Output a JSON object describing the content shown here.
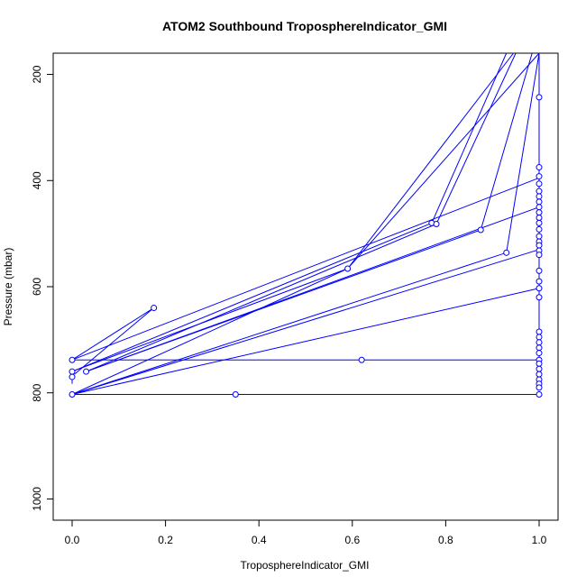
{
  "chart_data": {
    "type": "line",
    "title": "ATOM2 Southbound TroposphereIndicator_GMI",
    "xlabel": "TroposphereIndicator_GMI",
    "ylabel": "Pressure (mbar)",
    "xlim": [
      0,
      1
    ],
    "ylim": [
      1040,
      160
    ],
    "y_reversed": true,
    "xticks": [
      0.0,
      0.2,
      0.4,
      0.6,
      0.8,
      1.0
    ],
    "xtick_labels": [
      "0.0",
      "0.2",
      "0.4",
      "0.6",
      "0.8",
      "1.0"
    ],
    "yticks": [
      200,
      400,
      600,
      800,
      1000
    ],
    "ytick_labels": [
      "200",
      "400",
      "600",
      "800",
      "1000"
    ],
    "grid": false,
    "series_color": "#0000ff",
    "series": [
      {
        "x": [
          0.005,
          0.175,
          0.0
        ],
        "y": [
          765,
          640,
          738
        ]
      },
      {
        "x": [
          0.0,
          1.0
        ],
        "y": [
          738,
          395
        ]
      },
      {
        "x": [
          0.0,
          0.62,
          1.0
        ],
        "y": [
          738,
          738,
          738
        ]
      },
      {
        "x": [
          0.0,
          0.0
        ],
        "y": [
          760,
          783
        ]
      },
      {
        "x": [
          0.0,
          0.77,
          0.93
        ],
        "y": [
          760,
          480,
          155
        ]
      },
      {
        "x": [
          0.03,
          0.78,
          0.95
        ],
        "y": [
          760,
          482,
          155
        ]
      },
      {
        "x": [
          0.03,
          1.0
        ],
        "y": [
          760,
          450
        ]
      },
      {
        "x": [
          0.03,
          0.875,
          0.985
        ],
        "y": [
          760,
          493,
          155
        ]
      },
      {
        "x": [
          0.005,
          0.59,
          0.945
        ],
        "y": [
          758,
          566,
          155
        ]
      },
      {
        "x": [
          0.0,
          0.59,
          1.0
        ],
        "y": [
          803,
          566,
          155
        ]
      },
      {
        "x": [
          0.0,
          0.93,
          1.0
        ],
        "y": [
          803,
          536,
          155
        ]
      },
      {
        "x": [
          0.0,
          1.0
        ],
        "y": [
          803,
          530
        ]
      },
      {
        "x": [
          0.0,
          1.0
        ],
        "y": [
          803,
          603
        ]
      },
      {
        "x": [
          0.0,
          0.35,
          1.0
        ],
        "y": [
          803,
          803,
          803
        ]
      },
      {
        "x": [
          1.0,
          1.0
        ],
        "y": [
          155,
          790
        ]
      }
    ],
    "points": [
      {
        "x": 0.175,
        "y": 640
      },
      {
        "x": 0.03,
        "y": 760
      },
      {
        "x": 0.0,
        "y": 738
      },
      {
        "x": 0.0,
        "y": 760
      },
      {
        "x": 0.0,
        "y": 770
      },
      {
        "x": 0.0,
        "y": 803
      },
      {
        "x": 0.35,
        "y": 803
      },
      {
        "x": 0.62,
        "y": 738
      },
      {
        "x": 0.59,
        "y": 566
      },
      {
        "x": 0.77,
        "y": 480
      },
      {
        "x": 0.78,
        "y": 482
      },
      {
        "x": 0.875,
        "y": 493
      },
      {
        "x": 0.93,
        "y": 536
      },
      {
        "x": 1.0,
        "y": 243
      },
      {
        "x": 1.0,
        "y": 375
      },
      {
        "x": 1.0,
        "y": 392
      },
      {
        "x": 1.0,
        "y": 406
      },
      {
        "x": 1.0,
        "y": 420
      },
      {
        "x": 1.0,
        "y": 430
      },
      {
        "x": 1.0,
        "y": 440
      },
      {
        "x": 1.0,
        "y": 450
      },
      {
        "x": 1.0,
        "y": 460
      },
      {
        "x": 1.0,
        "y": 470
      },
      {
        "x": 1.0,
        "y": 480
      },
      {
        "x": 1.0,
        "y": 492
      },
      {
        "x": 1.0,
        "y": 505
      },
      {
        "x": 1.0,
        "y": 515
      },
      {
        "x": 1.0,
        "y": 522
      },
      {
        "x": 1.0,
        "y": 532
      },
      {
        "x": 1.0,
        "y": 540
      },
      {
        "x": 1.0,
        "y": 570
      },
      {
        "x": 1.0,
        "y": 590
      },
      {
        "x": 1.0,
        "y": 603
      },
      {
        "x": 1.0,
        "y": 620
      },
      {
        "x": 1.0,
        "y": 685
      },
      {
        "x": 1.0,
        "y": 695
      },
      {
        "x": 1.0,
        "y": 705
      },
      {
        "x": 1.0,
        "y": 715
      },
      {
        "x": 1.0,
        "y": 725
      },
      {
        "x": 1.0,
        "y": 738
      },
      {
        "x": 1.0,
        "y": 745
      },
      {
        "x": 1.0,
        "y": 755
      },
      {
        "x": 1.0,
        "y": 765
      },
      {
        "x": 1.0,
        "y": 775
      },
      {
        "x": 1.0,
        "y": 783
      },
      {
        "x": 1.0,
        "y": 790
      },
      {
        "x": 1.0,
        "y": 803
      }
    ]
  }
}
